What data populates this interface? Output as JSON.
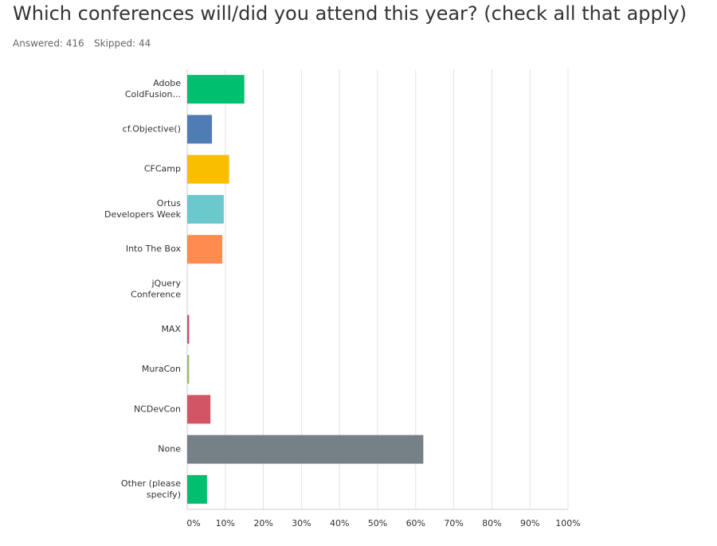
{
  "chart_data": {
    "type": "hbar",
    "title": "Which conferences will/did you attend this year? (check all that apply)",
    "answered": "Answered: 416",
    "skipped": "Skipped: 44",
    "categories": [
      "Adobe ColdFusion...",
      "cf.Objective()",
      "CFCamp",
      "Ortus Developers Week",
      "Into The Box",
      "jQuery Conference",
      "MAX",
      "MuraCon",
      "NCDevCon",
      "None",
      "Other (please specify)"
    ],
    "values": [
      15,
      6.5,
      11,
      9.6,
      9.2,
      0,
      0.5,
      0.5,
      6.1,
      62,
      5.2
    ],
    "colors": [
      "#00bf6f",
      "#507cb6",
      "#f9be00",
      "#6bc8cd",
      "#ff8b4f",
      "#7d5ba6",
      "#c9506c",
      "#a3b86c",
      "#d25565",
      "#768087",
      "#00bf6f"
    ],
    "xlim": [
      0,
      100
    ],
    "xticks": [
      {
        "value": 0,
        "label": "0%"
      },
      {
        "value": 10,
        "label": "10%"
      },
      {
        "value": 20,
        "label": "20%"
      },
      {
        "value": 30,
        "label": "30%"
      },
      {
        "value": 40,
        "label": "40%"
      },
      {
        "value": 50,
        "label": "50%"
      },
      {
        "value": 60,
        "label": "60%"
      },
      {
        "value": 70,
        "label": "70%"
      },
      {
        "value": 80,
        "label": "80%"
      },
      {
        "value": 90,
        "label": "90%"
      },
      {
        "value": 100,
        "label": "100%"
      }
    ],
    "grid": true
  }
}
